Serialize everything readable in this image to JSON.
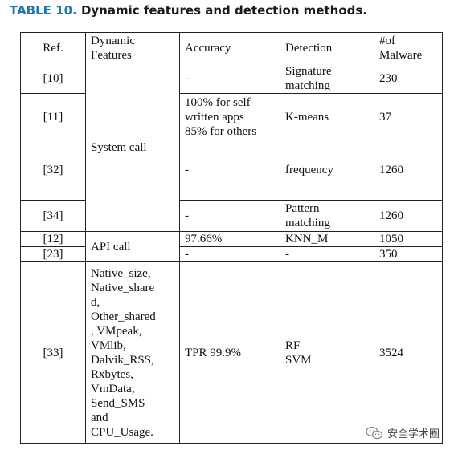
{
  "caption": {
    "number": "TABLE 10.",
    "title": "Dynamic features and detection methods."
  },
  "table": {
    "headers": {
      "ref": "Ref.",
      "features": "Dynamic\nFeatures",
      "accuracy": "Accuracy",
      "detection": "Detection",
      "malware": "#of\nMalware"
    },
    "groups": {
      "system_call": "System call",
      "api_call": "API call",
      "features_33": "Native_size,\nNative_share\nd,\nOther_shared\n, VMpeak,\nVMlib,\nDalvik_RSS,\nRxbytes,\nVmData,\nSend_SMS\nand\nCPU_Usage."
    },
    "rows": [
      {
        "ref": "[10]",
        "accuracy": "-",
        "detection": "Signature\nmatching",
        "malware": "230"
      },
      {
        "ref": "[11]",
        "accuracy": "100% for self-\nwritten apps\n85% for others",
        "detection": "K-means",
        "malware": "37"
      },
      {
        "ref": "[32]",
        "accuracy": "-",
        "detection": "frequency",
        "malware": "1260"
      },
      {
        "ref": "[34]",
        "accuracy": "-",
        "detection": "Pattern\nmatching",
        "malware": "1260"
      },
      {
        "ref": "[12]",
        "accuracy": "97.66%",
        "detection": "KNN_M",
        "malware": "1050"
      },
      {
        "ref": "[23]",
        "accuracy": "-",
        "detection": "-",
        "malware": "350"
      },
      {
        "ref": "[33]",
        "accuracy": "TPR 99.9%",
        "detection": "RF\nSVM",
        "malware": "3524"
      }
    ]
  },
  "watermark": {
    "text": "安全学术圈",
    "icon": "wechat-icon"
  }
}
